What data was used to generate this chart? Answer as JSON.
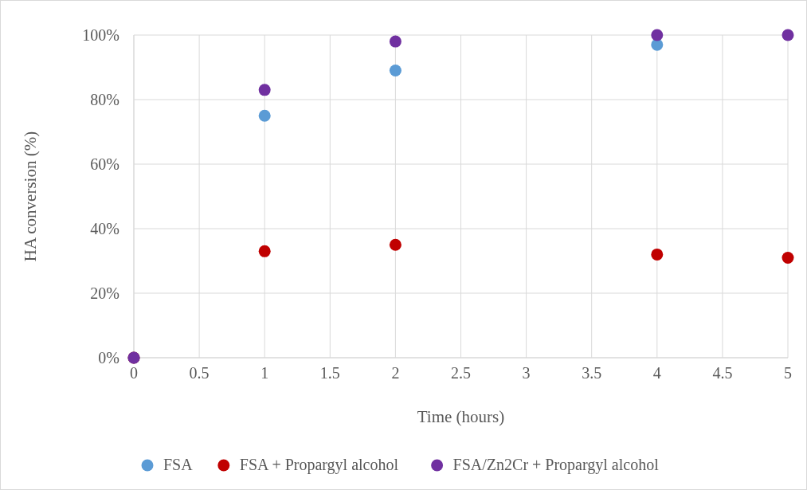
{
  "chart_data": {
    "type": "scatter",
    "xlabel": "Time (hours)",
    "ylabel": "HA conversion (%)",
    "xlim": [
      0,
      5
    ],
    "xticks": [
      0,
      0.5,
      1,
      1.5,
      2,
      2.5,
      3,
      3.5,
      4,
      4.5,
      5
    ],
    "ylim": [
      0,
      100
    ],
    "yticks": [
      {
        "value": 0,
        "label": "0%"
      },
      {
        "value": 20,
        "label": "20%"
      },
      {
        "value": 40,
        "label": "40%"
      },
      {
        "value": 60,
        "label": "60%"
      },
      {
        "value": 80,
        "label": "80%"
      },
      {
        "value": 100,
        "label": "100%"
      }
    ],
    "grid": true,
    "legend": "bottom",
    "marker": "circle",
    "series": [
      {
        "name": "FSA",
        "color": "#5b9bd5",
        "x": [
          0,
          1,
          2,
          4
        ],
        "values": [
          0,
          75,
          89,
          97
        ]
      },
      {
        "name": "FSA + Propargyl alcohol",
        "color": "#c00000",
        "x": [
          0,
          1,
          2,
          4,
          5
        ],
        "values": [
          0,
          33,
          35,
          32,
          31
        ]
      },
      {
        "name": "FSA/Zn2Cr + Propargyl alcohol",
        "color": "#7030a0",
        "x": [
          0,
          1,
          2,
          4,
          5
        ],
        "values": [
          0,
          83,
          98,
          100,
          100
        ]
      }
    ]
  }
}
